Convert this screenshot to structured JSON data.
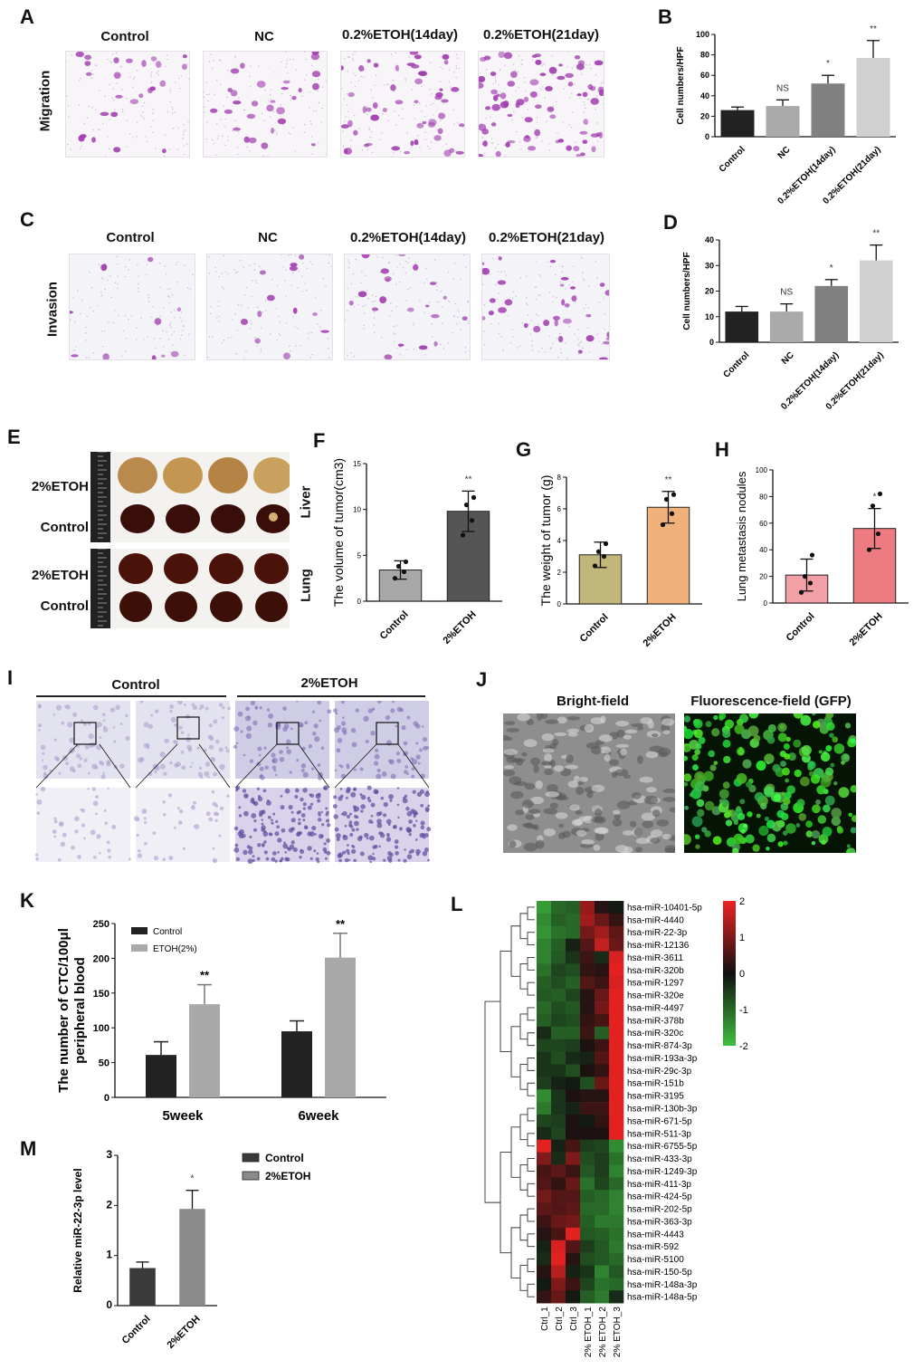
{
  "panels": {
    "A": {
      "letter": "A",
      "row_label": "Migration",
      "columns": [
        "Control",
        "NC",
        "0.2%ETOH(14day)",
        "0.2%ETOH(21day)"
      ]
    },
    "C": {
      "letter": "C",
      "row_label": "Invasion",
      "columns": [
        "Control",
        "NC",
        "0.2%ETOH(14day)",
        "0.2%ETOH(21day)"
      ]
    },
    "E": {
      "letter": "E",
      "rows": [
        "2%ETOH",
        "Control",
        "2%ETOH",
        "Control"
      ],
      "organs": [
        "Liver",
        "Lung"
      ]
    },
    "I": {
      "letter": "I",
      "groups": [
        "Control",
        "2%ETOH"
      ]
    },
    "J": {
      "letter": "J",
      "columns": [
        "Bright-field",
        "Fluorescence-field  (GFP)"
      ]
    },
    "L": {
      "letter": "L"
    }
  },
  "chart_data": [
    {
      "id": "B",
      "letter": "B",
      "type": "bar",
      "categories": [
        "Control",
        "NC",
        "0.2%ETOH(14day)",
        "0.2%ETOH(21day)"
      ],
      "values": [
        26,
        30,
        52,
        77
      ],
      "errors": [
        3,
        6,
        8,
        17
      ],
      "sig": [
        "",
        "NS",
        "*",
        "**"
      ],
      "ylabel": "Cell numbers/HPF",
      "ylim": [
        0,
        100
      ],
      "yticks": [
        0,
        20,
        40,
        60,
        80,
        100
      ],
      "colors": [
        "#222222",
        "#aaaaaa",
        "#808080",
        "#d0d0d0"
      ]
    },
    {
      "id": "D",
      "letter": "D",
      "type": "bar",
      "categories": [
        "Control",
        "NC",
        "0.2%ETOH(14day)",
        "0.2%ETOH(21day)"
      ],
      "values": [
        12,
        12,
        22,
        32
      ],
      "errors": [
        2,
        3,
        2.5,
        6
      ],
      "sig": [
        "",
        "NS",
        "*",
        "**"
      ],
      "ylabel": "Cell numbers/HPF",
      "ylim": [
        0,
        40
      ],
      "yticks": [
        0,
        10,
        20,
        30,
        40
      ],
      "colors": [
        "#222222",
        "#aaaaaa",
        "#808080",
        "#d0d0d0"
      ]
    },
    {
      "id": "F",
      "letter": "F",
      "type": "bar",
      "categories": [
        "Control",
        "2%ETOH"
      ],
      "values": [
        3.4,
        9.8
      ],
      "errors": [
        1.0,
        2.2
      ],
      "points": [
        [
          2.5,
          3.2,
          3.8,
          4.3
        ],
        [
          7.2,
          8.8,
          10.5,
          11.3
        ]
      ],
      "sig": [
        "",
        "**"
      ],
      "ylabel": "The volume of tumor(cm3)",
      "ylim": [
        0,
        15
      ],
      "yticks": [
        0,
        5,
        10,
        15
      ],
      "colors": [
        "#a8a8a8",
        "#555555"
      ]
    },
    {
      "id": "G",
      "letter": "G",
      "type": "bar",
      "categories": [
        "Control",
        "2%ETOH"
      ],
      "values": [
        3.1,
        6.1
      ],
      "errors": [
        0.8,
        1.0
      ],
      "points": [
        [
          2.4,
          3.0,
          3.3,
          3.8
        ],
        [
          5.0,
          5.7,
          6.6,
          6.9
        ]
      ],
      "sig": [
        "",
        "**"
      ],
      "ylabel": "The weight of tumor (g)",
      "ylim": [
        0,
        8
      ],
      "yticks": [
        0,
        2,
        4,
        6,
        8
      ],
      "colors": [
        "#c2b77a",
        "#f0b27a"
      ]
    },
    {
      "id": "H",
      "letter": "H",
      "type": "bar",
      "categories": [
        "Control",
        "2%ETOH"
      ],
      "values": [
        21,
        56
      ],
      "errors": [
        12,
        15
      ],
      "points": [
        [
          8,
          15,
          20,
          36
        ],
        [
          40,
          52,
          73,
          82
        ]
      ],
      "sig": [
        "",
        "*"
      ],
      "ylabel": "Lung metastasis nodules",
      "ylim": [
        0,
        100
      ],
      "yticks": [
        0,
        20,
        40,
        60,
        80,
        100
      ],
      "colors": [
        "#f2a0a6",
        "#ee7b82"
      ]
    },
    {
      "id": "K",
      "letter": "K",
      "type": "bar",
      "categories": [
        "5week",
        "6week"
      ],
      "series": [
        {
          "name": "Control",
          "values": [
            61,
            95
          ],
          "errors": [
            19,
            15
          ],
          "color": "#222222"
        },
        {
          "name": "ETOH(2%)",
          "values": [
            134,
            201
          ],
          "errors": [
            28,
            35
          ],
          "color": "#a9a9a9"
        }
      ],
      "sig": [
        "**",
        "**"
      ],
      "ylabel": "The number of CTC/100μl peripheral blood",
      "ylim": [
        0,
        250
      ],
      "yticks": [
        0,
        50,
        100,
        150,
        200,
        250
      ]
    },
    {
      "id": "M",
      "letter": "M",
      "type": "bar",
      "categories": [
        "Control",
        "2%ETOH"
      ],
      "values": [
        0.75,
        1.93
      ],
      "errors": [
        0.12,
        0.37
      ],
      "sig": [
        "",
        "*"
      ],
      "ylabel": "Relative miR-22-3p level",
      "ylim": [
        0,
        3
      ],
      "yticks": [
        0,
        1,
        2,
        3
      ],
      "colors": [
        "#3a3a3a",
        "#8a8a8a"
      ],
      "legend": [
        "Control",
        "2%ETOH"
      ]
    },
    {
      "id": "L",
      "letter": "L",
      "type": "heatmap",
      "columns": [
        "Ctrl_1",
        "Ctrl_2",
        "Ctrl_3",
        "2% ETOH_1",
        "2% ETOH_2",
        "2% ETOH_3"
      ],
      "rows": [
        "hsa-miR-10401-5p",
        "hsa-miR-4440",
        "hsa-miR-22-3p",
        "hsa-miR-12136",
        "hsa-miR-3611",
        "hsa-miR-320b",
        "hsa-miR-1297",
        "hsa-miR-320e",
        "hsa-miR-4497",
        "hsa-miR-378b",
        "hsa-miR-320c",
        "hsa-miR-874-3p",
        "hsa-miR-193a-3p",
        "hsa-miR-29c-3p",
        "hsa-miR-151b",
        "hsa-miR-3195",
        "hsa-miR-130b-3p",
        "hsa-miR-671-5p",
        "hsa-miR-511-3p",
        "hsa-miR-6755-5p",
        "hsa-miR-433-3p",
        "hsa-miR-1249-3p",
        "hsa-miR-411-3p",
        "hsa-miR-424-5p",
        "hsa-miR-202-5p",
        "hsa-miR-363-3p",
        "hsa-miR-4443",
        "hsa-miR-592",
        "hsa-miR-5100",
        "hsa-miR-150-5p",
        "hsa-miR-148a-3p",
        "hsa-miR-148a-5p"
      ],
      "values": [
        [
          -1.6,
          -1.0,
          -0.9,
          1.2,
          0.2,
          -0.1
        ],
        [
          -1.4,
          -0.9,
          -1.0,
          1.3,
          0.8,
          0.3
        ],
        [
          -1.5,
          -1.1,
          -1.0,
          0.9,
          1.3,
          0.7
        ],
        [
          -1.3,
          -0.9,
          -0.2,
          0.6,
          1.6,
          0.8
        ],
        [
          -1.3,
          -0.8,
          -0.4,
          0.4,
          -0.3,
          1.8
        ],
        [
          -1.1,
          -0.6,
          -0.7,
          0.3,
          0.2,
          1.9
        ],
        [
          -0.9,
          -0.7,
          -0.9,
          0.6,
          0.4,
          1.8
        ],
        [
          -0.8,
          -0.9,
          -0.6,
          0.2,
          0.8,
          1.9
        ],
        [
          -1.0,
          -0.7,
          -0.8,
          0.2,
          0.9,
          1.9
        ],
        [
          -0.9,
          -0.6,
          -0.7,
          0.3,
          0.5,
          1.9
        ],
        [
          -0.3,
          -0.9,
          -0.9,
          0.4,
          -0.9,
          1.9
        ],
        [
          -0.6,
          -0.6,
          -0.5,
          0.1,
          0.4,
          1.9
        ],
        [
          -0.4,
          -0.7,
          -0.3,
          -0.2,
          0.6,
          1.9
        ],
        [
          -0.4,
          -0.4,
          -0.7,
          0.1,
          0.3,
          1.9
        ],
        [
          -0.5,
          -0.2,
          -0.1,
          -0.7,
          0.8,
          1.9
        ],
        [
          -1.4,
          -0.4,
          0.1,
          0.2,
          0.2,
          1.9
        ],
        [
          -1.2,
          -0.4,
          -0.2,
          0.4,
          0.4,
          1.9
        ],
        [
          -0.6,
          -0.5,
          0.1,
          -0.1,
          0.3,
          1.9
        ],
        [
          -0.3,
          -0.6,
          0.1,
          0.1,
          0.1,
          1.9
        ],
        [
          1.9,
          -0.2,
          0.5,
          -0.5,
          -0.6,
          -1.4
        ],
        [
          1.0,
          -0.3,
          1.0,
          -0.7,
          -0.5,
          -1.1
        ],
        [
          0.5,
          0.7,
          0.4,
          -0.8,
          -0.5,
          -1.3
        ],
        [
          0.6,
          0.3,
          0.8,
          -1.1,
          -0.6,
          -1.0
        ],
        [
          0.9,
          0.6,
          0.6,
          -0.9,
          -1.0,
          -1.3
        ],
        [
          0.7,
          0.6,
          0.7,
          -1.0,
          -1.0,
          -1.3
        ],
        [
          0.4,
          0.8,
          0.9,
          -0.9,
          -1.2,
          -1.2
        ],
        [
          0.2,
          0.5,
          1.9,
          -0.8,
          -0.9,
          -1.1
        ],
        [
          -0.2,
          1.8,
          0.6,
          -0.5,
          -0.8,
          -1.2
        ],
        [
          -0.3,
          1.9,
          0.2,
          -0.7,
          -0.8,
          -1.0
        ],
        [
          0.2,
          1.5,
          -0.2,
          -0.4,
          -1.3,
          -0.8
        ],
        [
          -0.1,
          1.0,
          0.4,
          -0.6,
          -1.1,
          -1.0
        ],
        [
          0.3,
          0.8,
          -0.1,
          -0.9,
          -1.2,
          -0.3
        ]
      ],
      "scale": {
        "min": -2,
        "max": 2,
        "ticks": [
          2,
          1,
          0,
          -1,
          -2
        ],
        "colors": [
          "#3fbf3f",
          "#111111",
          "#ee2222"
        ]
      }
    }
  ]
}
